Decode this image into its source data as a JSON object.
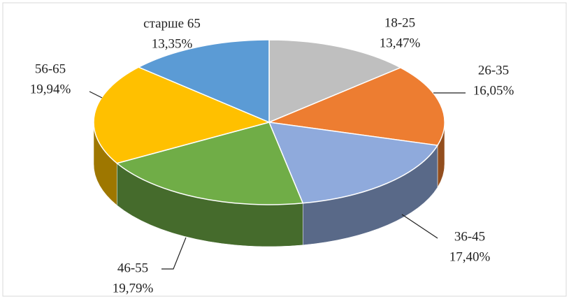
{
  "chart_data": {
    "type": "pie3d",
    "categories": [
      "18-25",
      "26-35",
      "36-45",
      "46-55",
      "56-65",
      "старше 65"
    ],
    "values": [
      13.47,
      16.05,
      17.4,
      19.79,
      19.94,
      13.35
    ],
    "value_labels": [
      "13,47%",
      "16,05%",
      "17,40%",
      "19,79%",
      "19,94%",
      "13,35%"
    ],
    "colors": [
      "#bfbfbf",
      "#ed7d31",
      "#8faadc",
      "#70ad47",
      "#ffc000",
      "#5b9bd5"
    ]
  }
}
